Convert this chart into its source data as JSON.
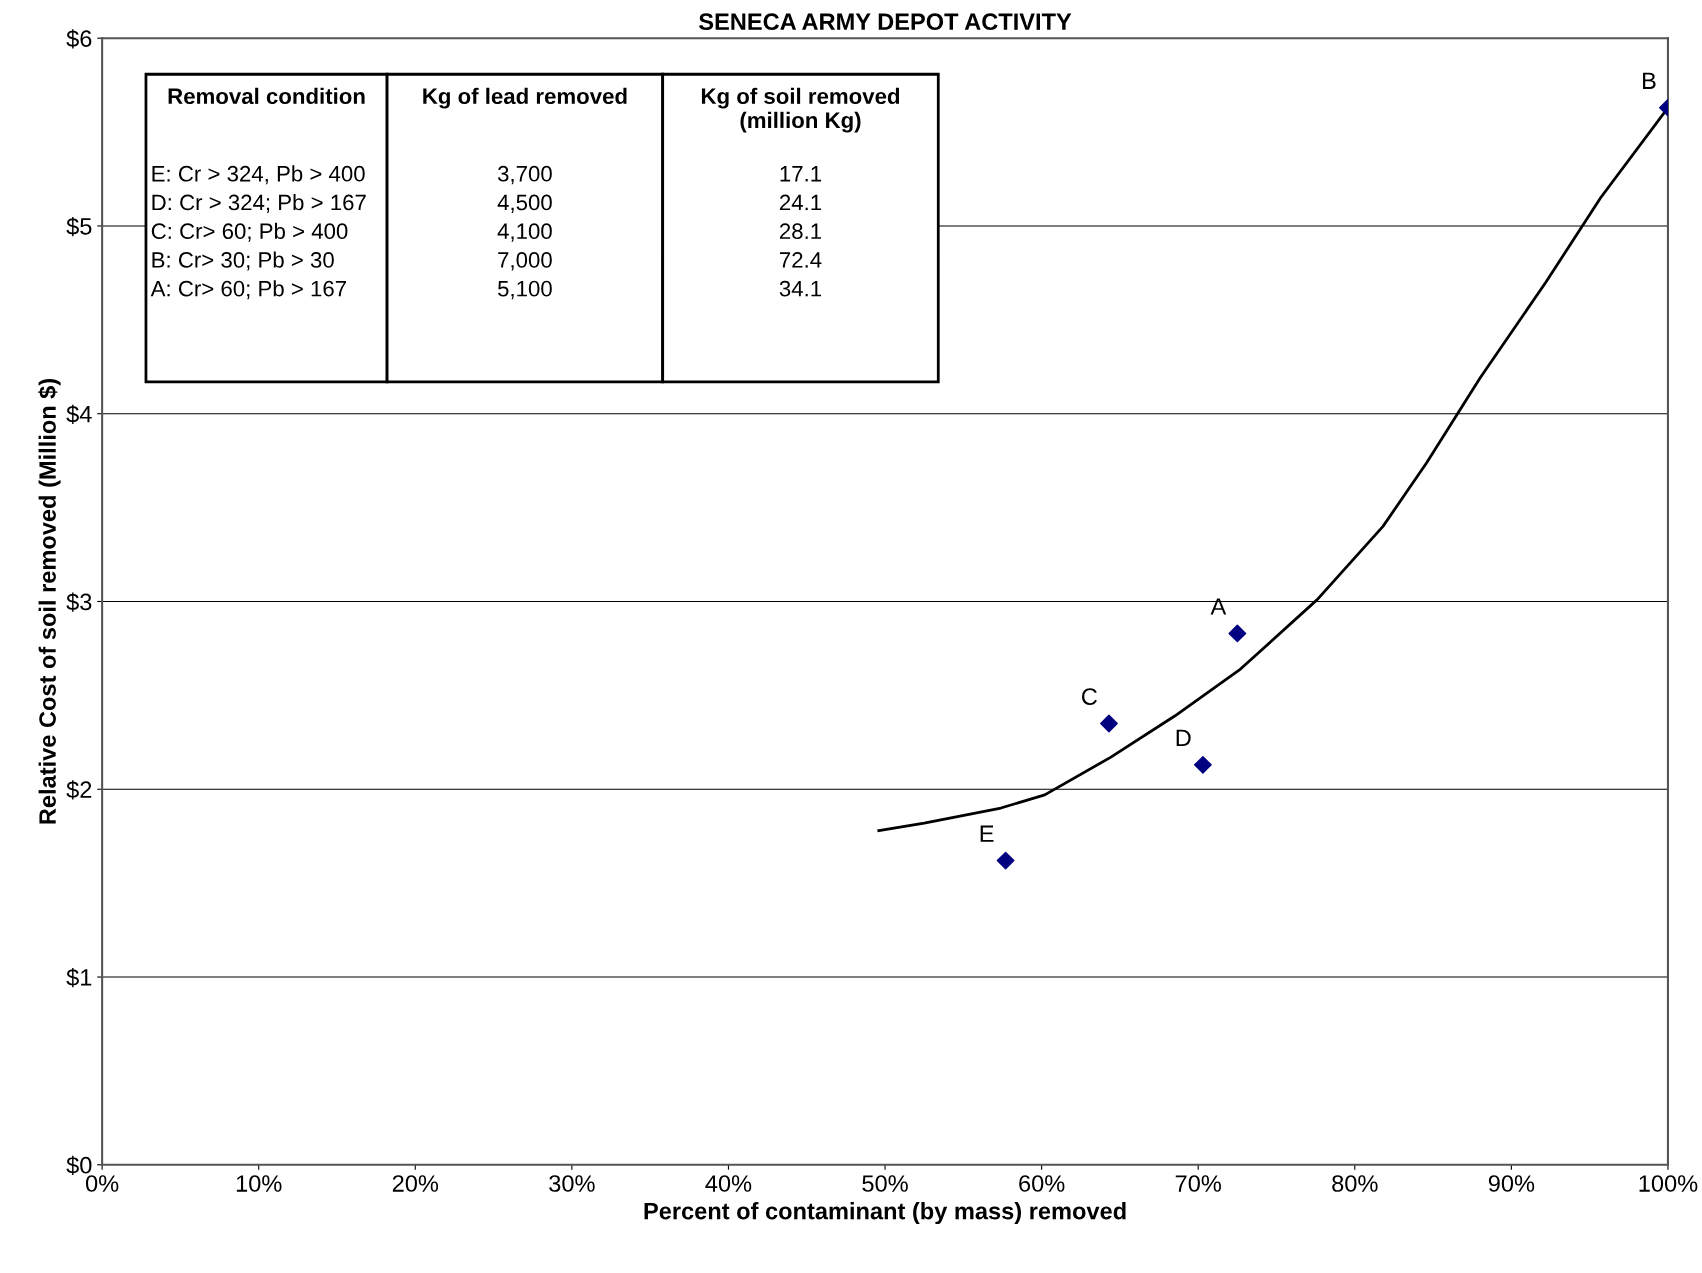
{
  "chart_data": {
    "type": "scatter",
    "title": "SENECA ARMY DEPOT ACTIVITY",
    "xlabel": "Percent of contaminant (by mass) removed",
    "ylabel": "Relative Cost of soil removed (Million $)",
    "xlim": [
      0,
      100
    ],
    "ylim": [
      0,
      6
    ],
    "xticks": [
      {
        "value": 0,
        "label": "0%"
      },
      {
        "value": 10,
        "label": "10%"
      },
      {
        "value": 20,
        "label": "20%"
      },
      {
        "value": 30,
        "label": "30%"
      },
      {
        "value": 40,
        "label": "40%"
      },
      {
        "value": 50,
        "label": "50%"
      },
      {
        "value": 60,
        "label": "60%"
      },
      {
        "value": 70,
        "label": "70%"
      },
      {
        "value": 80,
        "label": "80%"
      },
      {
        "value": 90,
        "label": "90%"
      },
      {
        "value": 100,
        "label": "100%"
      }
    ],
    "yticks": [
      {
        "value": 0,
        "label": "$0"
      },
      {
        "value": 1,
        "label": "$1"
      },
      {
        "value": 2,
        "label": "$2"
      },
      {
        "value": 3,
        "label": "$3"
      },
      {
        "value": 4,
        "label": "$4"
      },
      {
        "value": 5,
        "label": "$5"
      },
      {
        "value": 6,
        "label": "$6"
      }
    ],
    "grid": "y",
    "series": [
      {
        "type": "line",
        "color": "#000000",
        "marker": "none",
        "line_style": "solid",
        "x": [
          49.6,
          52.5,
          57.4,
          60.2,
          64.4,
          68.5,
          72.7,
          77.6,
          81.8,
          84.6,
          88.0,
          92.2,
          95.7,
          100
        ],
        "values": [
          1.78,
          1.82,
          1.9,
          1.97,
          2.17,
          2.39,
          2.64,
          3.01,
          3.4,
          3.74,
          4.19,
          4.7,
          5.15,
          5.63
        ]
      },
      {
        "color": "#000080",
        "marker": "diamond",
        "x": [
          100,
          72.5,
          64.3,
          70.3,
          57.7
        ],
        "values": [
          5.63,
          2.83,
          2.35,
          2.13,
          1.62
        ],
        "value_labels": [
          "B",
          "A",
          "C",
          "D",
          "E"
        ]
      }
    ],
    "annotations": [
      "Removal condition",
      "Kg of lead removed",
      "Kg of soil removed\n(million Kg)",
      "E: Cr > 324, Pb > 400",
      "3,700",
      "17.1",
      "D: Cr > 324; Pb > 167",
      "4,500",
      "24.1",
      "C: Cr> 60; Pb > 400",
      "4,100",
      "28.1",
      "B: Cr> 30; Pb > 30",
      "7,000",
      "72.4",
      "A: Cr> 60; Pb > 167",
      "5,100",
      "34.1"
    ]
  }
}
